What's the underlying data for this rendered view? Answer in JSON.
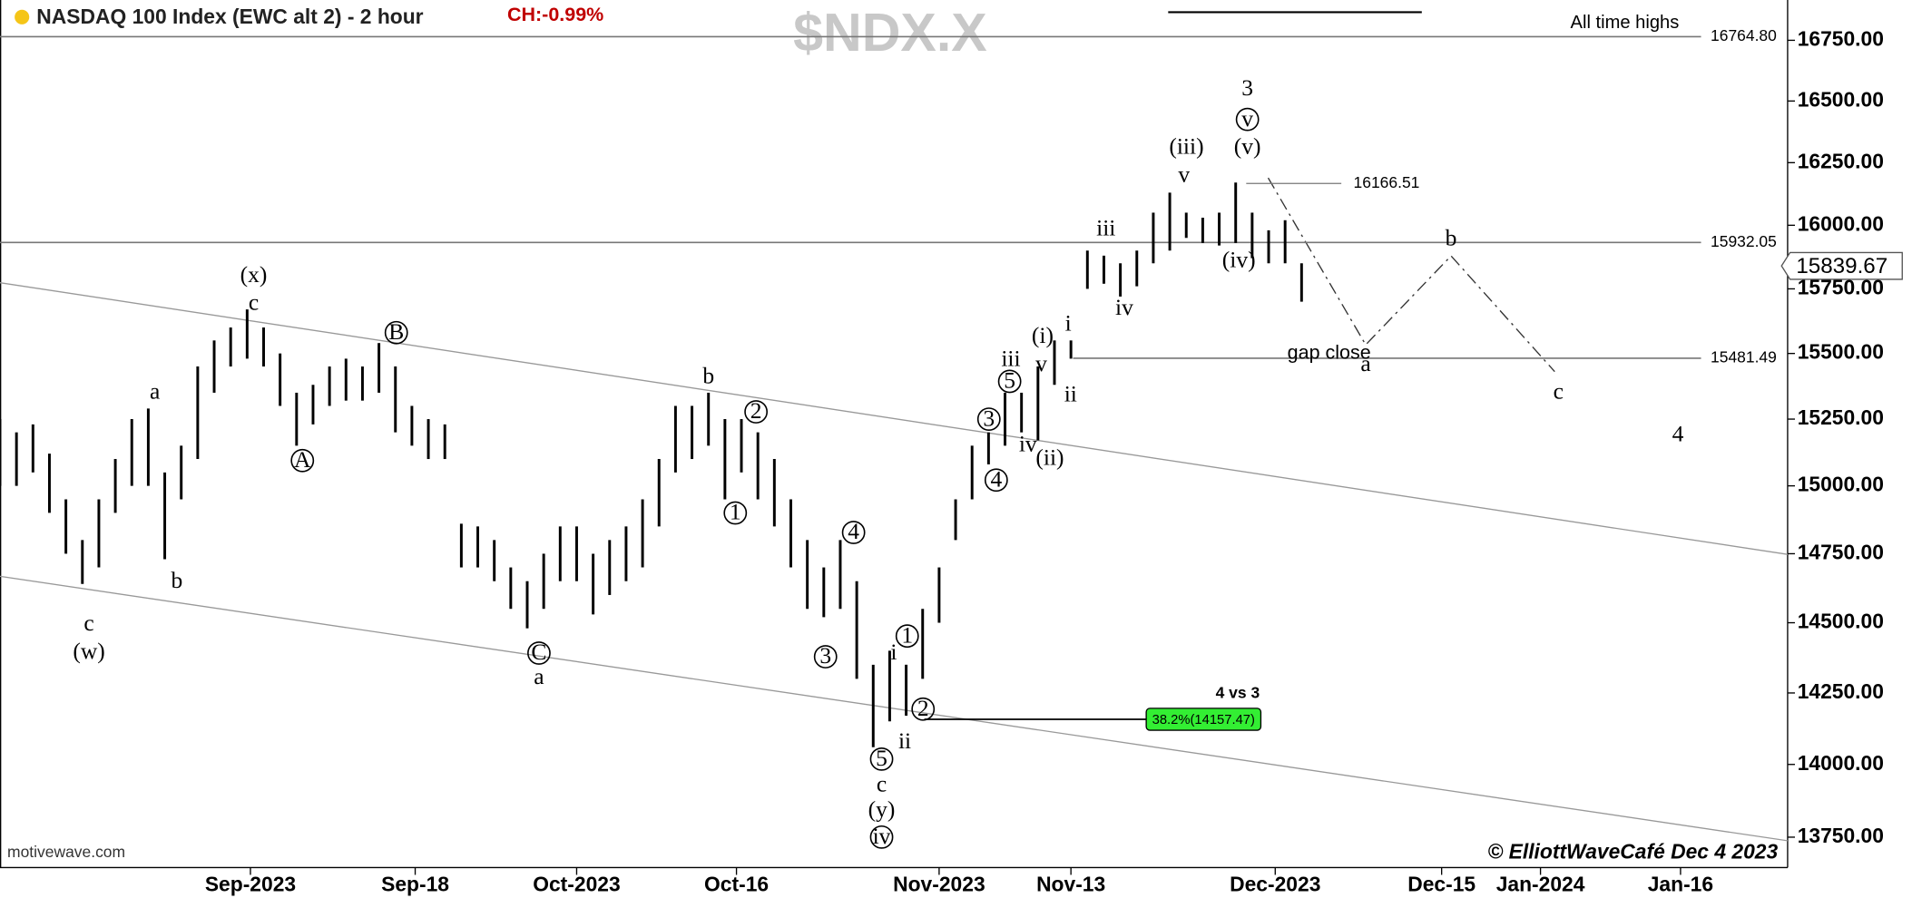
{
  "chart_data": {
    "type": "ohlc",
    "title": "NASDAQ 100 Index (EWC alt 2) - 2 hour",
    "change": "CH:-0.99%",
    "symbol": "$NDX.X",
    "source": "motivewave.com",
    "copyright": "© ElliottWaveCafé Dec 4 2023",
    "bar_color": "#000000",
    "log_y": true,
    "x": [
      0,
      1,
      2,
      3,
      4,
      5,
      6,
      7,
      8,
      9,
      10,
      11,
      12,
      13,
      14,
      15,
      16,
      17,
      18,
      19,
      20,
      21,
      22,
      23,
      24,
      25,
      26,
      27,
      28,
      29,
      30,
      31,
      32,
      33,
      34,
      35,
      36,
      37,
      38,
      39,
      40,
      41,
      42,
      43,
      44,
      45,
      46,
      47,
      48,
      49,
      50,
      51,
      52,
      53,
      54,
      55,
      56,
      57,
      58,
      59,
      60,
      61,
      62,
      63,
      64,
      65,
      66,
      67,
      68,
      69,
      70,
      71,
      72,
      73,
      74,
      75,
      76,
      77,
      78,
      79
    ],
    "high": [
      15250,
      15200,
      15230,
      15120,
      14950,
      14800,
      14950,
      15100,
      15250,
      15290,
      15050,
      15150,
      15450,
      15550,
      15600,
      15670,
      15600,
      15500,
      15350,
      15380,
      15450,
      15480,
      15450,
      15540,
      15450,
      15300,
      15250,
      15230,
      14860,
      14850,
      14800,
      14700,
      14650,
      14750,
      14850,
      14850,
      14750,
      14800,
      14850,
      14950,
      15100,
      15300,
      15300,
      15350,
      15250,
      15250,
      15200,
      15100,
      14950,
      14800,
      14700,
      14800,
      14650,
      14350,
      14400,
      14350,
      14550,
      14700,
      14950,
      15150,
      15200,
      15350,
      15350,
      15450,
      15550,
      15550,
      15900,
      15880,
      15850,
      15900,
      16050,
      16130,
      16050,
      16030,
      16050,
      16170,
      16050,
      15980,
      16020,
      15850
    ],
    "low": [
      15000,
      15000,
      15050,
      14900,
      14750,
      14640,
      14700,
      14900,
      15000,
      15000,
      14730,
      14950,
      15100,
      15350,
      15450,
      15480,
      15450,
      15300,
      15150,
      15230,
      15300,
      15320,
      15320,
      15350,
      15200,
      15150,
      15100,
      15100,
      14700,
      14700,
      14650,
      14550,
      14480,
      14550,
      14650,
      14650,
      14530,
      14600,
      14650,
      14700,
      14850,
      15050,
      15100,
      15150,
      14950,
      15050,
      14950,
      14850,
      14700,
      14550,
      14520,
      14550,
      14300,
      14060,
      14150,
      14170,
      14300,
      14500,
      14800,
      14950,
      15080,
      15150,
      15200,
      15170,
      15380,
      15480,
      15750,
      15770,
      15720,
      15760,
      15850,
      15900,
      15950,
      15930,
      15920,
      15930,
      15870,
      15850,
      15850,
      15700
    ],
    "xlim": [
      0,
      108.5
    ],
    "xticks": [
      {
        "value": 15.2,
        "label": "Sep-2023"
      },
      {
        "value": 25.2,
        "label": "Sep-18"
      },
      {
        "value": 35,
        "label": "Oct-2023"
      },
      {
        "value": 44.7,
        "label": "Oct-16"
      },
      {
        "value": 57,
        "label": "Nov-2023"
      },
      {
        "value": 65,
        "label": "Nov-13"
      },
      {
        "value": 77.4,
        "label": "Dec-2023"
      },
      {
        "value": 87.5,
        "label": "Dec-15"
      },
      {
        "value": 93.5,
        "label": "Jan-2024"
      },
      {
        "value": 102,
        "label": "Jan-16"
      }
    ],
    "ylim": [
      13647,
      16918
    ],
    "yticks": [
      {
        "value": 13750,
        "label": "13750.00"
      },
      {
        "value": 14000,
        "label": "14000.00"
      },
      {
        "value": 14250,
        "label": "14250.00"
      },
      {
        "value": 14500,
        "label": "14500.00"
      },
      {
        "value": 14750,
        "label": "14750.00"
      },
      {
        "value": 15000,
        "label": "15000.00"
      },
      {
        "value": 15250,
        "label": "15250.00"
      },
      {
        "value": 15500,
        "label": "15500.00"
      },
      {
        "value": 15750,
        "label": "15750.00"
      },
      {
        "value": 16000,
        "label": "16000.00"
      },
      {
        "value": 16250,
        "label": "16250.00"
      },
      {
        "value": 16500,
        "label": "16500.00"
      },
      {
        "value": 16750,
        "label": "16750.00"
      }
    ],
    "last_price": 15839.67,
    "levels": [
      {
        "value": 16764.8,
        "label": "16764.80",
        "note": "All time highs"
      },
      {
        "value": 15932.05
      },
      {
        "value": 15481.49,
        "note": "gap close"
      }
    ],
    "swing_high": 16166.51,
    "fib": {
      "value": 14157.47,
      "label": "38.2%(14157.47)",
      "note": "4 vs 3"
    },
    "wave_labels": [
      "(x)",
      "c",
      "a",
      "b",
      "c",
      "(w)",
      "B",
      "A",
      "C",
      "a",
      "b",
      "2",
      "1",
      "3",
      "4",
      "1",
      "i",
      "2",
      "ii",
      "5",
      "c",
      "(y)",
      "iv",
      "3",
      "5",
      "iii",
      "4",
      "iv",
      "(ii)",
      "v",
      "(i)",
      "i",
      "ii",
      "iii",
      "iv",
      "(iii)",
      "v",
      "(v)",
      "v",
      "3",
      "(iv)",
      "a",
      "b",
      "c",
      "4"
    ]
  }
}
